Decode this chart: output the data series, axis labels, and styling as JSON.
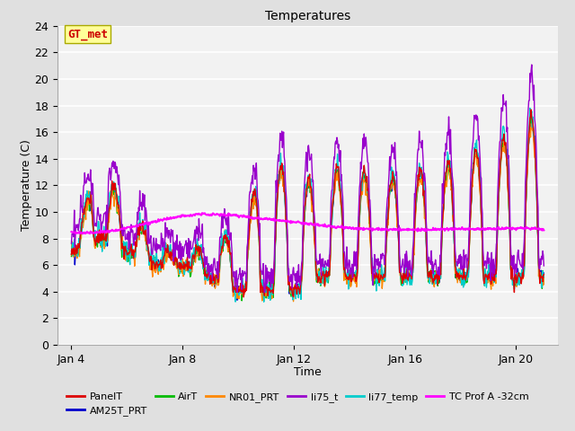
{
  "title": "Temperatures",
  "xlabel": "Time",
  "ylabel": "Temperature (C)",
  "ylim": [
    0,
    24
  ],
  "yticks": [
    0,
    2,
    4,
    6,
    8,
    10,
    12,
    14,
    16,
    18,
    20,
    22,
    24
  ],
  "xlim_days": [
    3.5,
    21.5
  ],
  "xtick_days": [
    4,
    8,
    12,
    16,
    20
  ],
  "xtick_labels": [
    "Jan 4",
    "Jan 8",
    "Jan 12",
    "Jan 16",
    "Jan 20"
  ],
  "annotation_text": "GT_met",
  "annotation_color": "#cc0000",
  "annotation_bg": "#ffff99",
  "annotation_edge": "#aaaa00",
  "bg_color": "#e0e0e0",
  "plot_bg_color": "#f2f2f2",
  "grid_color": "#ffffff",
  "series": {
    "PanelT": {
      "color": "#dd0000",
      "lw": 1.0,
      "zorder": 4
    },
    "AM25T_PRT": {
      "color": "#0000cc",
      "lw": 1.0,
      "zorder": 3
    },
    "AirT": {
      "color": "#00bb00",
      "lw": 1.0,
      "zorder": 3
    },
    "NR01_PRT": {
      "color": "#ff8800",
      "lw": 1.0,
      "zorder": 3
    },
    "li75_t": {
      "color": "#9900cc",
      "lw": 1.0,
      "zorder": 5
    },
    "li77_temp": {
      "color": "#00cccc",
      "lw": 1.0,
      "zorder": 3
    },
    "TC Prof A -32cm": {
      "color": "#ff00ff",
      "lw": 1.5,
      "zorder": 6
    }
  },
  "figsize": [
    6.4,
    4.8
  ],
  "dpi": 100
}
